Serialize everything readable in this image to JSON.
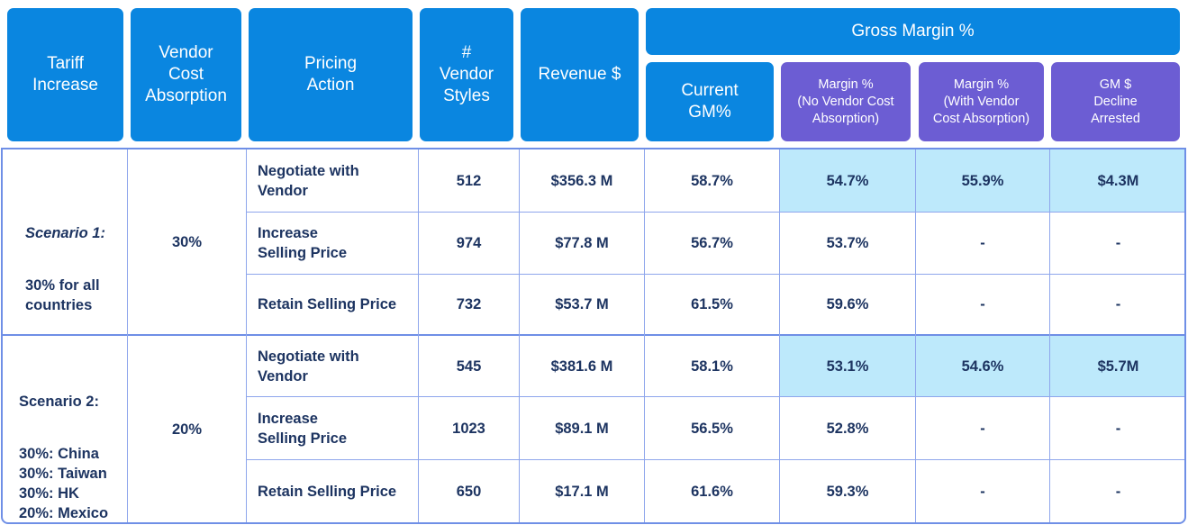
{
  "headers": {
    "tariff_increase": "Tariff\nIncrease",
    "vendor_cost_absorption": "Vendor\nCost\nAbsorption",
    "pricing_action": "Pricing\nAction",
    "vendor_styles": "#\nVendor\nStyles",
    "revenue": "Revenue $",
    "gross_margin": "Gross Margin %",
    "current_gm": "Current\nGM%",
    "margin_no_vca": "Margin %\n(No Vendor Cost\nAbsorption)",
    "margin_with_vca": "Margin %\n(With Vendor\nCost Absorption)",
    "gm_decline": "GM $\nDecline\nArrested"
  },
  "scenarios": [
    {
      "title": "Scenario 1:",
      "description": "30% for all\ncountries",
      "vendor_cost_absorption": "30%",
      "rows": [
        {
          "pricing_action": "Negotiate with\nVendor",
          "vendor_styles": "512",
          "revenue": "$356.3 M",
          "current_gm": "58.7%",
          "margin_no_vca": "54.7%",
          "margin_with_vca": "55.9%",
          "gm_decline": "$4.3M"
        },
        {
          "pricing_action": "Increase\nSelling Price",
          "vendor_styles": "974",
          "revenue": "$77.8 M",
          "current_gm": "56.7%",
          "margin_no_vca": "53.7%",
          "margin_with_vca": "-",
          "gm_decline": "-"
        },
        {
          "pricing_action": "Retain Selling Price",
          "vendor_styles": "732",
          "revenue": "$53.7 M",
          "current_gm": "61.5%",
          "margin_no_vca": "59.6%",
          "margin_with_vca": "-",
          "gm_decline": "-"
        }
      ]
    },
    {
      "title": "Scenario 2:",
      "description": "30%: China\n30%: Taiwan\n30%: HK\n20%: Mexico",
      "vendor_cost_absorption": "20%",
      "rows": [
        {
          "pricing_action": "Negotiate with\nVendor",
          "vendor_styles": "545",
          "revenue": "$381.6 M",
          "current_gm": "58.1%",
          "margin_no_vca": "53.1%",
          "margin_with_vca": "54.6%",
          "gm_decline": "$5.7M"
        },
        {
          "pricing_action": "Increase\nSelling Price",
          "vendor_styles": "1023",
          "revenue": "$89.1 M",
          "current_gm": "56.5%",
          "margin_no_vca": "52.8%",
          "margin_with_vca": "-",
          "gm_decline": "-"
        },
        {
          "pricing_action": "Retain Selling Price",
          "vendor_styles": "650",
          "revenue": "$17.1 M",
          "current_gm": "61.6%",
          "margin_no_vca": "59.3%",
          "margin_with_vca": "-",
          "gm_decline": "-"
        }
      ]
    }
  ],
  "colors": {
    "header_blue": "#0a86e0",
    "header_purple": "#6c5dd3",
    "highlight": "#bde9fb",
    "text": "#1d3461",
    "border": "#6f8fe6"
  }
}
